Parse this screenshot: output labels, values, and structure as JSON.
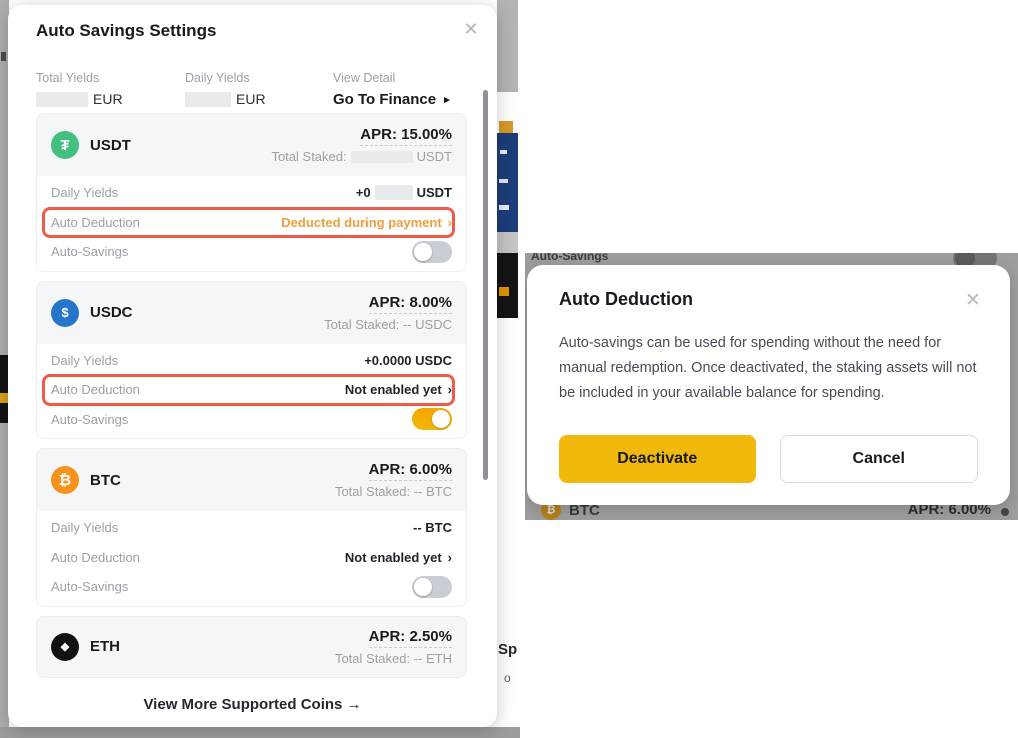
{
  "colors": {
    "accent_yellow": "#F0B90B",
    "orange_link": "#EF9F3C",
    "annotation_red": "#EE5B4B",
    "usdt_green": "#43C07F",
    "usdc_blue": "#2775CA",
    "btc_orange": "#F7931A",
    "eth_black": "#121212"
  },
  "left_modal": {
    "title": "Auto Savings Settings",
    "close_icon": "✕",
    "stats": {
      "total_yields_label": "Total Yields",
      "total_yields_suffix": "EUR",
      "daily_yields_label": "Daily Yields",
      "daily_yields_suffix": "EUR",
      "view_detail_label": "View Detail",
      "view_detail_link": "Go To Finance",
      "view_detail_arrow": "▸"
    },
    "coins": [
      {
        "symbol": "USDT",
        "icon": "₮",
        "icon_color_key": "usdt_green",
        "apr": "APR: 15.00%",
        "staked_parts": [
          {
            "t": "text",
            "v": "Total Staked:"
          },
          {
            "t": "blur",
            "w": 62
          },
          {
            "t": "text",
            "v": "USDT"
          }
        ],
        "rows": [
          {
            "label": "Daily Yields",
            "parts": [
              {
                "t": "text",
                "v": "+0"
              },
              {
                "t": "blur",
                "w": 38
              },
              {
                "t": "text",
                "v": "USDT"
              }
            ]
          },
          {
            "label": "Auto Deduction",
            "parts": [
              {
                "t": "text",
                "v": "Deducted during payment"
              }
            ],
            "chevron": "›",
            "color": "orange",
            "annotated": true,
            "link": true
          },
          {
            "label": "Auto-Savings",
            "toggle": "off"
          }
        ]
      },
      {
        "symbol": "USDC",
        "icon": "$",
        "icon_color_key": "usdc_blue",
        "apr": "APR: 8.00%",
        "staked_parts": [
          {
            "t": "text",
            "v": "Total Staked: -- USDC"
          }
        ],
        "rows": [
          {
            "label": "Daily Yields",
            "parts": [
              {
                "t": "text",
                "v": "+0.0000 USDC"
              }
            ]
          },
          {
            "label": "Auto Deduction",
            "parts": [
              {
                "t": "text",
                "v": "Not enabled yet"
              }
            ],
            "chevron": "›",
            "annotated": true,
            "link": true
          },
          {
            "label": "Auto-Savings",
            "toggle": "on"
          }
        ]
      },
      {
        "symbol": "BTC",
        "icon": "₿",
        "icon_color_key": "btc_orange",
        "apr": "APR: 6.00%",
        "staked_parts": [
          {
            "t": "text",
            "v": "Total Staked: -- BTC"
          }
        ],
        "rows": [
          {
            "label": "Daily Yields",
            "parts": [
              {
                "t": "text",
                "v": "-- BTC"
              }
            ]
          },
          {
            "label": "Auto Deduction",
            "parts": [
              {
                "t": "text",
                "v": "Not enabled yet"
              }
            ],
            "chevron": "›",
            "link": true
          },
          {
            "label": "Auto-Savings",
            "toggle": "off"
          }
        ]
      },
      {
        "symbol": "ETH",
        "icon": "◆",
        "icon_color_key": "eth_black",
        "apr": "APR: 2.50%",
        "staked_parts": [
          {
            "t": "text",
            "v": "Total Staked: -- ETH"
          }
        ],
        "rows": [],
        "header_only": true
      }
    ],
    "footer_link": "View More Supported Coins →"
  },
  "right_dialog": {
    "title": "Auto Deduction",
    "close_icon": "✕",
    "body": "Auto-savings can be used for spending without the need for manual redemption. Once deactivated, the staking assets will not be included in your available balance for spending.",
    "deactivate_label": "Deactivate",
    "cancel_label": "Cancel",
    "backdrop": {
      "top_label": "Auto-Savings",
      "coin_symbol": "BTC",
      "coin_icon": "₿",
      "apr": "APR: 6.00%"
    }
  },
  "background_fragments": {
    "bottom_text_1": "Sp",
    "bottom_text_2": "o"
  }
}
